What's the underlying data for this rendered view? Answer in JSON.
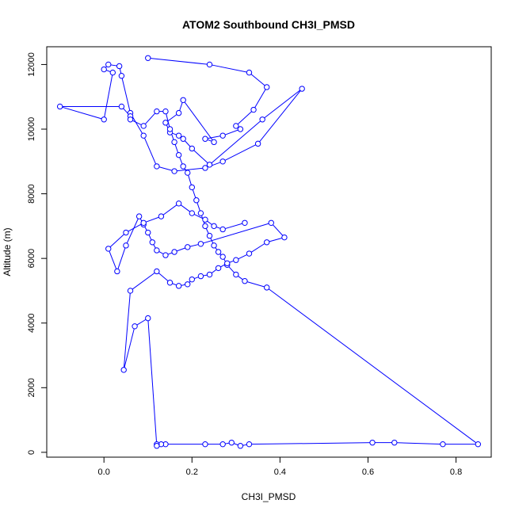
{
  "chart_data": {
    "type": "line",
    "title": "ATOM2 Southbound CH3I_PMSD",
    "xlabel": "CH3I_PMSD",
    "ylabel": "Altitude (m)",
    "xlim": [
      -0.13,
      0.88
    ],
    "ylim": [
      -150,
      12550
    ],
    "xticks": [
      0.0,
      0.2,
      0.4,
      0.6,
      0.8
    ],
    "yticks": [
      0,
      2000,
      4000,
      6000,
      8000,
      10000,
      12000
    ],
    "grid": false,
    "legend": "none",
    "series_color": "#0000ff",
    "marker": "open-circle",
    "x": [
      0.1,
      0.24,
      0.33,
      0.37,
      0.34,
      0.3,
      0.31,
      0.27,
      0.23,
      0.25,
      0.18,
      0.17,
      0.14,
      0.15,
      0.17,
      0.18,
      0.2,
      0.24,
      0.36,
      0.45,
      0.35,
      0.27,
      0.23,
      0.16,
      0.12,
      0.09,
      0.06,
      0.04,
      0.035,
      0.01,
      0.0,
      0.02,
      0.0,
      -0.1,
      0.04,
      0.06,
      0.06,
      0.09,
      0.12,
      0.14,
      0.15,
      0.16,
      0.17,
      0.18,
      0.19,
      0.2,
      0.21,
      0.22,
      0.23,
      0.24,
      0.25,
      0.26,
      0.27,
      0.28,
      0.3,
      0.32,
      0.37,
      0.85,
      0.77,
      0.66,
      0.61,
      0.33,
      0.31,
      0.29,
      0.27,
      0.23,
      0.14,
      0.13,
      0.12,
      0.12,
      0.1,
      0.07,
      0.045,
      0.06,
      0.12,
      0.15,
      0.17,
      0.19,
      0.2,
      0.22,
      0.24,
      0.26,
      0.28,
      0.3,
      0.33,
      0.37,
      0.41,
      0.38,
      0.22,
      0.19,
      0.16,
      0.14,
      0.12,
      0.11,
      0.1,
      0.09,
      0.08,
      0.05,
      0.03,
      0.01,
      0.05,
      0.09,
      0.13,
      0.17,
      0.2,
      0.23,
      0.25,
      0.27,
      0.32
    ],
    "y": [
      12200,
      12000,
      11750,
      11300,
      10600,
      10100,
      10000,
      9800,
      9700,
      9600,
      10900,
      10500,
      10200,
      9900,
      9800,
      9700,
      9400,
      8900,
      10300,
      11250,
      9550,
      9000,
      8800,
      8700,
      8850,
      9800,
      10500,
      11650,
      11950,
      12000,
      11850,
      11750,
      10300,
      10700,
      10700,
      10400,
      10300,
      10100,
      10550,
      10550,
      10000,
      9600,
      9200,
      8850,
      8650,
      8200,
      7800,
      7400,
      7000,
      6700,
      6400,
      6200,
      6050,
      5800,
      5500,
      5300,
      5100,
      250,
      250,
      300,
      300,
      250,
      200,
      300,
      250,
      250,
      250,
      250,
      250,
      200,
      4150,
      3900,
      2550,
      5000,
      5600,
      5250,
      5150,
      5200,
      5350,
      5450,
      5500,
      5700,
      5850,
      5950,
      6150,
      6500,
      6650,
      7100,
      6450,
      6350,
      6200,
      6100,
      6250,
      6500,
      6800,
      7050,
      7300,
      6400,
      5600,
      6300,
      6800,
      7100,
      7300,
      7700,
      7400,
      7200,
      7000,
      6900,
      7100
    ]
  }
}
